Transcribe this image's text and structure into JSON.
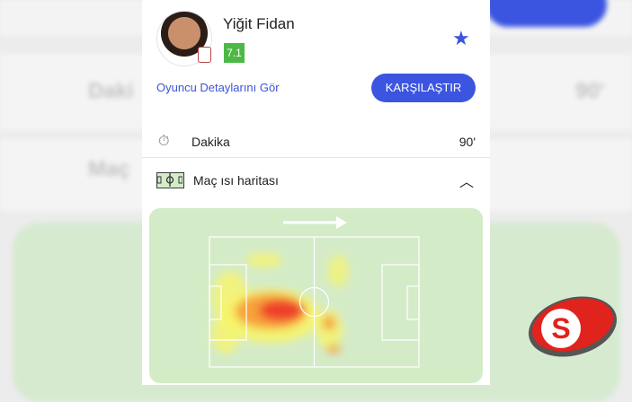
{
  "player": {
    "name": "Yiğit Fidan",
    "rating": "7.1",
    "rating_color": "#4db846"
  },
  "actions": {
    "details_link": "Oyuncu Detaylarını Gör",
    "compare_button": "KARŞILAŞTIR"
  },
  "stats": [
    {
      "icon": "stopwatch-icon",
      "label": "Dakika",
      "value": "90'"
    }
  ],
  "heatmap_section": {
    "icon": "pitch-icon",
    "title": "Maç ısı haritası",
    "expanded": true,
    "direction": "right"
  },
  "accent_color": "#3b55e0",
  "watermark": {
    "letter": "S"
  }
}
